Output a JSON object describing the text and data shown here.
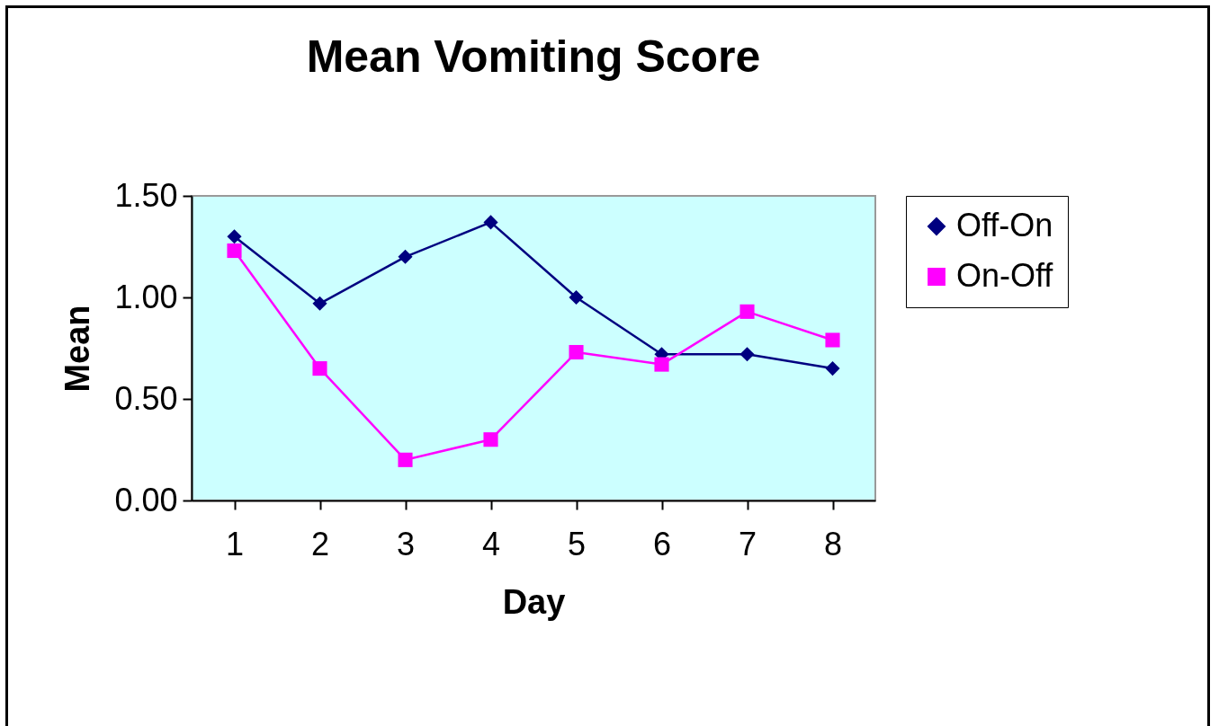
{
  "chart_data": {
    "type": "line",
    "title": "Mean Vomiting Score",
    "xlabel": "Day",
    "ylabel": "Mean",
    "categories": [
      "1",
      "2",
      "3",
      "4",
      "5",
      "6",
      "7",
      "8"
    ],
    "series": [
      {
        "name": "Off-On",
        "color": "#000080",
        "marker": "diamond",
        "values": [
          1.3,
          0.97,
          1.2,
          1.37,
          1.0,
          0.72,
          0.72,
          0.65
        ]
      },
      {
        "name": "On-Off",
        "color": "#ff00ff",
        "marker": "square",
        "values": [
          1.23,
          0.65,
          0.2,
          0.3,
          0.73,
          0.67,
          0.93,
          0.79
        ]
      }
    ],
    "ylim": [
      0,
      1.5
    ],
    "yticks": [
      {
        "value": 0,
        "label": "0.00"
      },
      {
        "value": 0.5,
        "label": "0.50"
      },
      {
        "value": 1,
        "label": "1.00"
      },
      {
        "value": 1.5,
        "label": "1.50"
      }
    ],
    "grid": false,
    "legend": "right"
  }
}
